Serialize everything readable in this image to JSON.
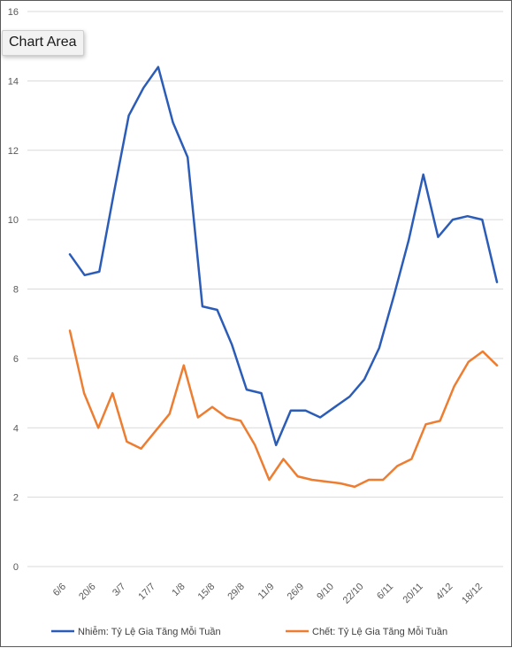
{
  "tooltip": {
    "label": "Chart Area"
  },
  "colors": {
    "series1": "#2b5cb8",
    "series2": "#ed7d31",
    "grid": "#d9d9d9",
    "tick": "#595959"
  },
  "chart_data": {
    "type": "line",
    "title": "",
    "xlabel": "",
    "ylabel": "",
    "ylim": [
      0,
      16
    ],
    "y_ticks": [
      "0",
      "2",
      "4",
      "6",
      "8",
      "10",
      "12",
      "14",
      "16"
    ],
    "x_tick_labels": [
      "6/6",
      "20/6",
      "3/7",
      "17/7",
      "1/8",
      "15/8",
      "29/8",
      "11/9",
      "26/9",
      "9/10",
      "22/10",
      "6/11",
      "20/11",
      "4/12",
      "18/12"
    ],
    "grid": true,
    "legend_position": "bottom",
    "series": [
      {
        "name": "Nhiễm: Tỷ Lệ Gia Tăng   Mỗi Tuần",
        "values": [
          9.0,
          8.4,
          8.5,
          10.8,
          13.0,
          13.8,
          14.4,
          12.8,
          11.8,
          7.5,
          7.4,
          6.4,
          5.1,
          5.0,
          3.5,
          4.5,
          4.5,
          4.3,
          4.6,
          4.9,
          5.4,
          6.3,
          7.8,
          9.4,
          11.3,
          9.5,
          10.0,
          10.1,
          10.0,
          8.2
        ]
      },
      {
        "name": "Chết: Tỷ Lệ Gia Tăng Mỗi Tuần",
        "values": [
          6.8,
          5.0,
          4.0,
          5.0,
          3.6,
          3.4,
          3.9,
          4.4,
          5.8,
          4.3,
          4.6,
          4.3,
          4.2,
          3.5,
          2.5,
          3.1,
          2.6,
          2.5,
          2.45,
          2.4,
          2.3,
          2.5,
          2.5,
          2.9,
          3.1,
          4.1,
          4.2,
          5.2,
          5.9,
          6.2,
          5.8
        ]
      }
    ]
  }
}
